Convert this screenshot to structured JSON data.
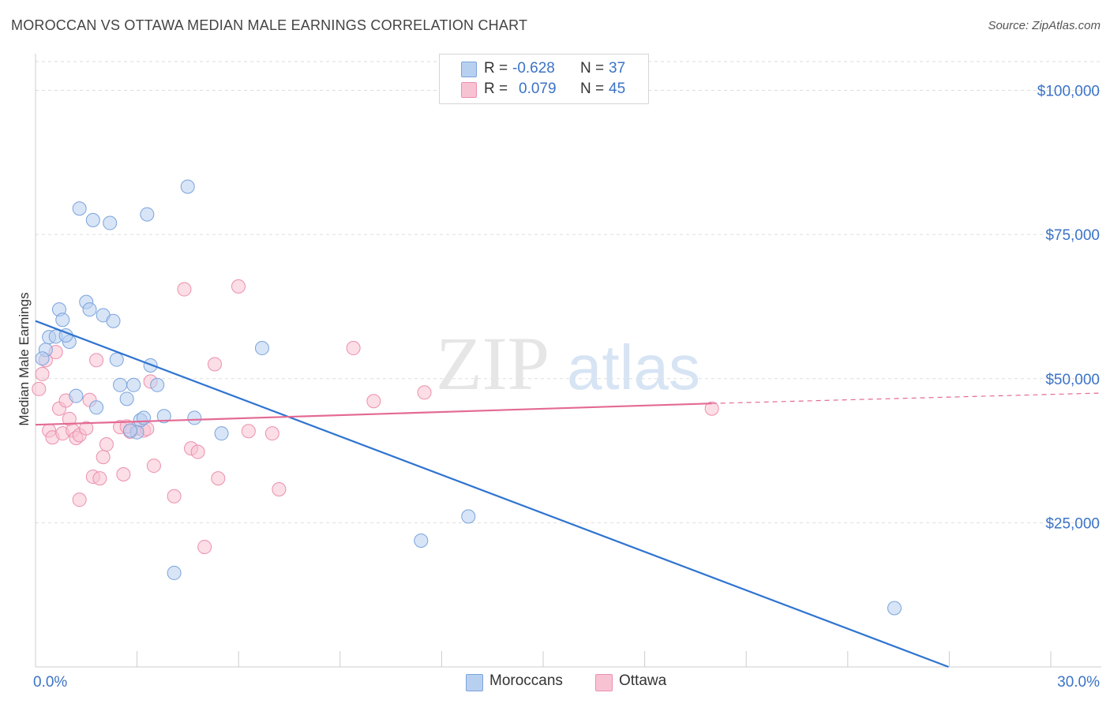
{
  "title": "MOROCCAN VS OTTAWA MEDIAN MALE EARNINGS CORRELATION CHART",
  "source": "Source: ZipAtlas.com",
  "legend": {
    "rows": [
      {
        "r_label": "R =",
        "r_value": "-0.628",
        "n_label": "N =",
        "n_value": "37"
      },
      {
        "r_label": "R =",
        "r_value": "0.079",
        "n_label": "N =",
        "n_value": "45"
      }
    ]
  },
  "bottom_legend": [
    "Moroccans",
    "Ottawa"
  ],
  "colors": {
    "moroccans_fill": "#b8d0f0",
    "moroccans_stroke": "#7aa3dc",
    "moroccans_line": "#2f74d0",
    "ottawa_fill": "#f7c3d2",
    "ottawa_stroke": "#ec8fae",
    "ottawa_line": "#e36a94",
    "tick_label": "#3b73c7",
    "grid": "#dddddd"
  },
  "chart_data": {
    "type": "scatter",
    "title": "MOROCCAN VS OTTAWA MEDIAN MALE EARNINGS CORRELATION CHART",
    "xlabel": "",
    "ylabel": "Median Male Earnings",
    "xlim": [
      0,
      30
    ],
    "ylim": [
      0,
      105000
    ],
    "x_tick_labels": [
      "0.0%",
      "30.0%"
    ],
    "y_ticks": [
      25000,
      50000,
      75000,
      100000
    ],
    "y_tick_labels": [
      "$25,000",
      "$50,000",
      "$75,000",
      "$100,000"
    ],
    "grid": "horizontal dashed",
    "legend_position": "top-center",
    "series": [
      {
        "name": "Moroccans",
        "r": -0.628,
        "n": 37,
        "trend": {
          "x0": 0.0,
          "y0": 60000,
          "x1": 27.0,
          "y1": 0
        },
        "points": [
          [
            0.3,
            55000
          ],
          [
            0.2,
            53500
          ],
          [
            0.4,
            57200
          ],
          [
            0.6,
            57300
          ],
          [
            0.7,
            62000
          ],
          [
            0.8,
            60200
          ],
          [
            1.0,
            56400
          ],
          [
            1.2,
            47000
          ],
          [
            1.3,
            79500
          ],
          [
            1.5,
            63300
          ],
          [
            1.7,
            77500
          ],
          [
            1.8,
            45000
          ],
          [
            1.6,
            62000
          ],
          [
            2.0,
            61000
          ],
          [
            2.2,
            77000
          ],
          [
            2.3,
            60000
          ],
          [
            2.4,
            53300
          ],
          [
            2.5,
            48900
          ],
          [
            2.7,
            46500
          ],
          [
            2.9,
            48900
          ],
          [
            3.1,
            42800
          ],
          [
            3.2,
            43200
          ],
          [
            3.3,
            78500
          ],
          [
            3.4,
            52300
          ],
          [
            3.6,
            48900
          ],
          [
            3.8,
            43500
          ],
          [
            4.1,
            16300
          ],
          [
            4.5,
            83300
          ],
          [
            4.7,
            43200
          ],
          [
            5.5,
            40500
          ],
          [
            6.7,
            55300
          ],
          [
            11.4,
            21900
          ],
          [
            12.8,
            26100
          ],
          [
            25.4,
            10200
          ],
          [
            3.0,
            40700
          ],
          [
            2.8,
            41000
          ],
          [
            0.9,
            57500
          ]
        ]
      },
      {
        "name": "Ottawa",
        "r": 0.079,
        "n": 45,
        "trend": {
          "x0": 0.0,
          "y0": 42000,
          "x1": 20.0,
          "y1": 45700,
          "dash_to_x": 30.0,
          "dash_to_y": 47500
        },
        "points": [
          [
            0.1,
            48200
          ],
          [
            0.2,
            50800
          ],
          [
            0.3,
            53200
          ],
          [
            0.4,
            41000
          ],
          [
            0.5,
            39800
          ],
          [
            0.6,
            54600
          ],
          [
            0.7,
            44800
          ],
          [
            0.8,
            40500
          ],
          [
            0.9,
            46200
          ],
          [
            1.0,
            43000
          ],
          [
            1.1,
            41000
          ],
          [
            1.2,
            39700
          ],
          [
            1.3,
            40200
          ],
          [
            1.5,
            41400
          ],
          [
            1.6,
            46300
          ],
          [
            1.7,
            33000
          ],
          [
            1.8,
            53200
          ],
          [
            1.9,
            32700
          ],
          [
            2.0,
            36400
          ],
          [
            2.1,
            38600
          ],
          [
            1.3,
            29000
          ],
          [
            2.5,
            41600
          ],
          [
            2.6,
            33400
          ],
          [
            2.8,
            40800
          ],
          [
            3.0,
            41400
          ],
          [
            3.2,
            41000
          ],
          [
            3.4,
            49500
          ],
          [
            3.5,
            34900
          ],
          [
            4.1,
            29600
          ],
          [
            4.4,
            65500
          ],
          [
            4.6,
            37900
          ],
          [
            4.8,
            37300
          ],
          [
            5.0,
            20800
          ],
          [
            5.3,
            52500
          ],
          [
            5.4,
            32700
          ],
          [
            6.0,
            66000
          ],
          [
            6.3,
            40900
          ],
          [
            7.0,
            40500
          ],
          [
            7.2,
            30800
          ],
          [
            9.4,
            55300
          ],
          [
            10.0,
            46100
          ],
          [
            11.5,
            47600
          ],
          [
            20.0,
            44800
          ],
          [
            3.3,
            41300
          ],
          [
            2.7,
            41700
          ]
        ]
      }
    ]
  }
}
